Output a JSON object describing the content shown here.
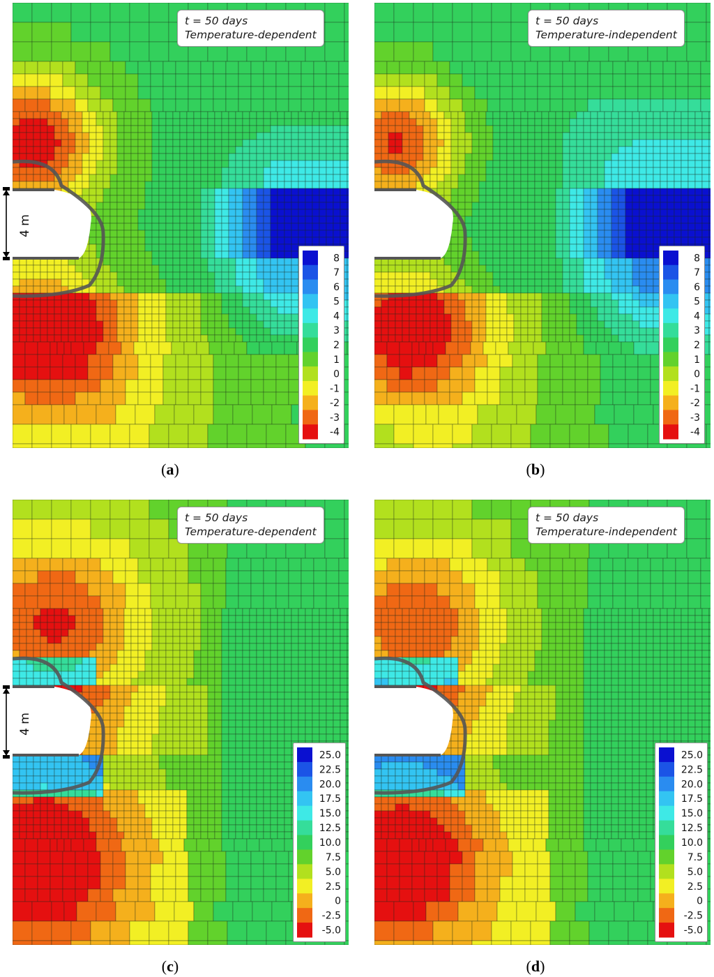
{
  "colors": {
    "palette_a": [
      "#0b14d6",
      "#1a50e8",
      "#2b8ff0",
      "#34c7f0",
      "#3ef0dc",
      "#33e2a0",
      "#33d45e",
      "#6ed62c",
      "#b4e21c",
      "#f0ee28",
      "#f5b41e",
      "#f06a14",
      "#e21a10"
    ],
    "mesh_line": "#1c2a1c",
    "lining": "#555555"
  },
  "panels": [
    {
      "id": "a",
      "info_line1": "t = 50 days",
      "info_line2": "Temperature-dependent",
      "caption_letter": "a",
      "legend_labels": [
        "8",
        "7",
        "6",
        "5",
        "4",
        "3",
        "2",
        "1",
        "0",
        "-1",
        "-2",
        "-3",
        "-4"
      ],
      "legend_colors": [
        "#0a10d0",
        "#1b54e6",
        "#2a8cf0",
        "#33c4f2",
        "#3ee9e6",
        "#35dd9a",
        "#33d05c",
        "#62d22c",
        "#b2e01e",
        "#f2ef24",
        "#f5b01c",
        "#f06814",
        "#e51010"
      ],
      "scale_text": "4 m",
      "variant": "disp"
    },
    {
      "id": "b",
      "info_line1": "t = 50 days",
      "info_line2": "Temperature-independent",
      "caption_letter": "b",
      "legend_labels": [
        "8",
        "7",
        "6",
        "5",
        "4",
        "3",
        "2",
        "1",
        "0",
        "-1",
        "-2",
        "-3",
        "-4"
      ],
      "legend_colors": [
        "#0a10d0",
        "#1b54e6",
        "#2a8cf0",
        "#33c4f2",
        "#3ee9e6",
        "#35dd9a",
        "#33d05c",
        "#62d22c",
        "#b2e01e",
        "#f2ef24",
        "#f5b01c",
        "#f06814",
        "#e51010"
      ],
      "scale_text": "",
      "variant": "disp"
    },
    {
      "id": "c",
      "info_line1": "t = 50 days",
      "info_line2": "Temperature-dependent",
      "caption_letter": "c",
      "legend_labels": [
        "25.0",
        "22.5",
        "20.0",
        "17.5",
        "15.0",
        "12.5",
        "10.0",
        "7.5",
        "5.0",
        "2.5",
        "0",
        "-2.5",
        "-5.0"
      ],
      "legend_colors": [
        "#0a10d0",
        "#1b54e6",
        "#2a8cf0",
        "#33c4f2",
        "#3ee9e6",
        "#35dd9a",
        "#33d05c",
        "#62d22c",
        "#b2e01e",
        "#f2ef24",
        "#f5b01c",
        "#f06814",
        "#e51010"
      ],
      "scale_text": "4 m",
      "variant": "stress"
    },
    {
      "id": "d",
      "info_line1": "t = 50 days",
      "info_line2": "Temperature-independent",
      "caption_letter": "d",
      "legend_labels": [
        "25.0",
        "22.5",
        "20.0",
        "17.5",
        "15.0",
        "12.5",
        "10.0",
        "7.5",
        "5.0",
        "2.5",
        "0",
        "-2.5",
        "-5.0"
      ],
      "legend_colors": [
        "#0a10d0",
        "#1b54e6",
        "#2a8cf0",
        "#33c4f2",
        "#3ee9e6",
        "#35dd9a",
        "#33d05c",
        "#62d22c",
        "#b2e01e",
        "#f2ef24",
        "#f5b01c",
        "#f06814",
        "#e51010"
      ],
      "scale_text": "",
      "variant": "stress"
    }
  ]
}
